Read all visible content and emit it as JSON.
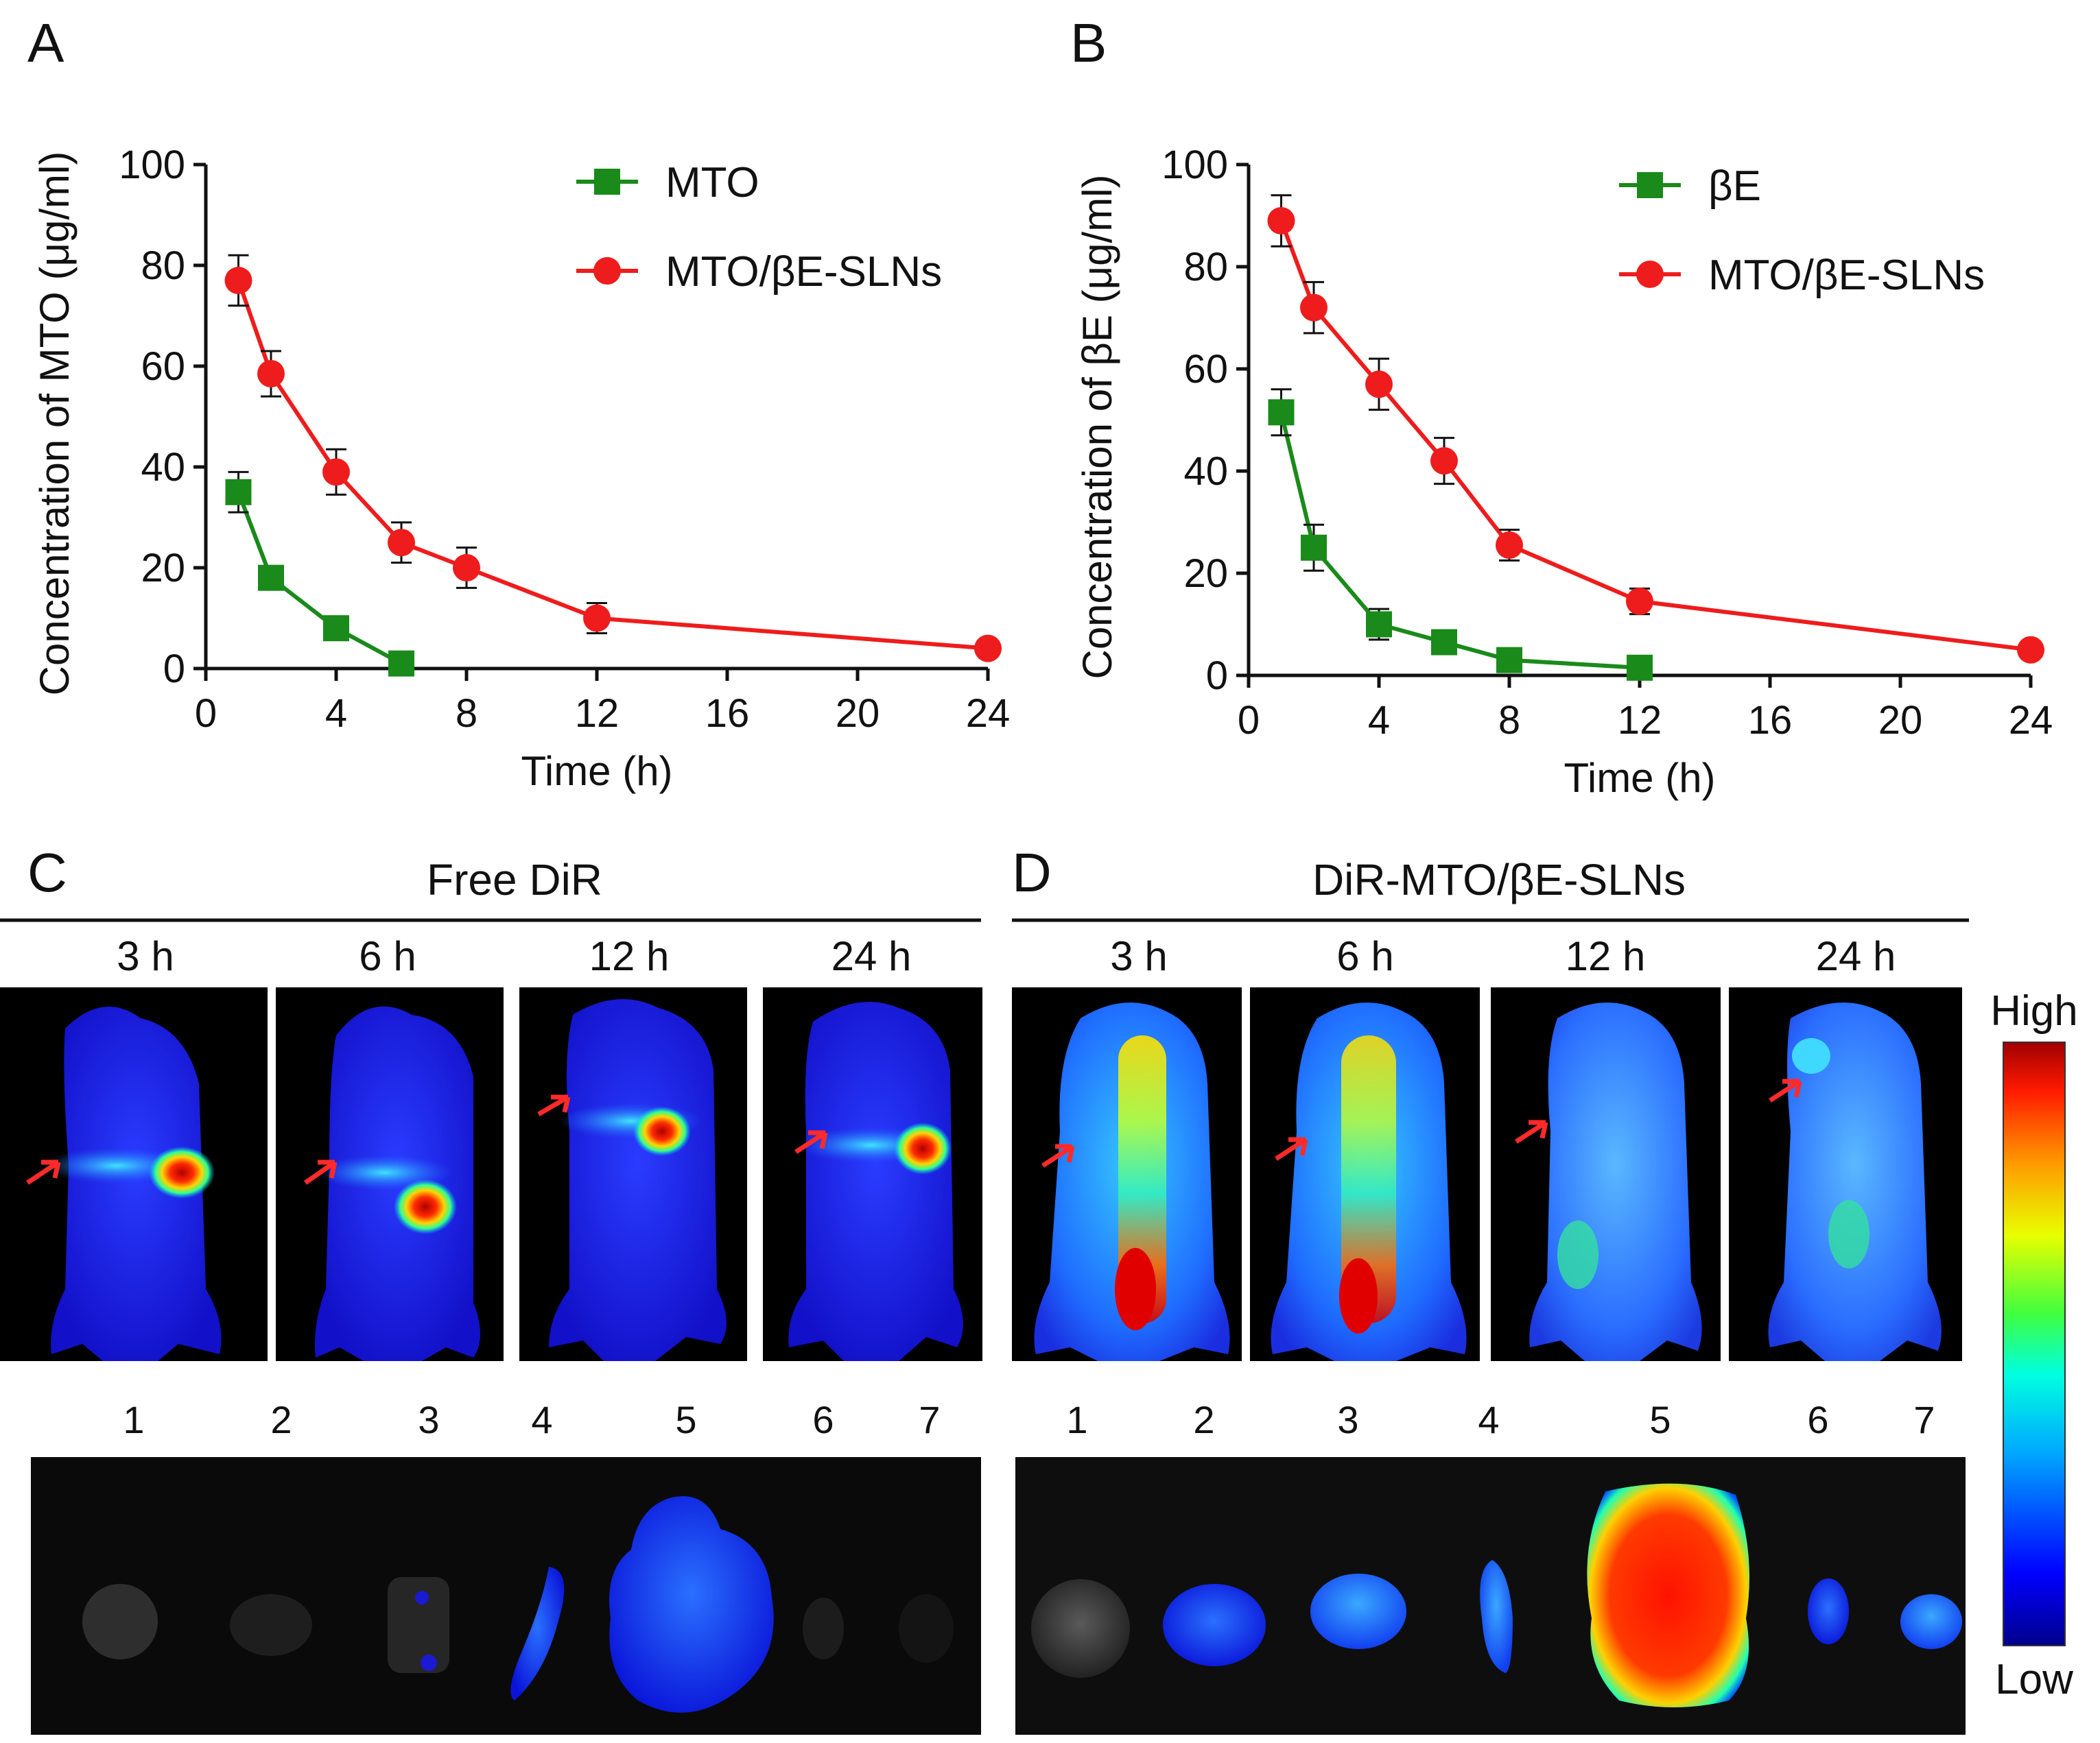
{
  "panels": {
    "A": {
      "label": "A"
    },
    "B": {
      "label": "B"
    },
    "C": {
      "label": "C",
      "title": "Free DiR"
    },
    "D": {
      "label": "D",
      "title": "DiR-MTO/βE-SLNs"
    }
  },
  "chart_data": [
    {
      "id": "A",
      "type": "line",
      "title": "",
      "xlabel": "Time (h)",
      "ylabel": "Concentration of MTO (μg/ml)",
      "xlim": [
        0,
        24
      ],
      "ylim": [
        0,
        100
      ],
      "xticks": [
        "0",
        "4",
        "8",
        "12",
        "16",
        "20",
        "24"
      ],
      "yticks": [
        "0",
        "20",
        "40",
        "60",
        "80",
        "100"
      ],
      "legend_position": "top-right",
      "series": [
        {
          "name": "MTO",
          "color": "#1a8a1a",
          "marker": "square",
          "x": [
            1,
            2,
            4,
            6
          ],
          "y": [
            35,
            18,
            8,
            1
          ],
          "err": [
            4,
            2,
            1.5,
            1
          ]
        },
        {
          "name": "MTO/βE-SLNs",
          "color": "#ee1c1c",
          "marker": "circle",
          "x": [
            1,
            2,
            4,
            6,
            8,
            12,
            24
          ],
          "y": [
            77,
            58.5,
            39,
            25,
            20,
            10,
            4
          ],
          "err": [
            5,
            4.5,
            4.5,
            4,
            4,
            3,
            1
          ]
        }
      ]
    },
    {
      "id": "B",
      "type": "line",
      "title": "",
      "xlabel": "Time (h)",
      "ylabel": "Concentration of  βE (μg/ml)",
      "xlim": [
        0,
        24
      ],
      "ylim": [
        0,
        100
      ],
      "xticks": [
        "0",
        "4",
        "8",
        "12",
        "16",
        "20",
        "24"
      ],
      "yticks": [
        "0",
        "20",
        "40",
        "60",
        "80",
        "100"
      ],
      "legend_position": "top-right",
      "series": [
        {
          "name": "βE",
          "color": "#1a8a1a",
          "marker": "square",
          "x": [
            1,
            2,
            4,
            6,
            8,
            12
          ],
          "y": [
            51.5,
            25,
            10,
            6.5,
            3,
            1.5
          ],
          "err": [
            4.5,
            4.5,
            3,
            2,
            1.5,
            1
          ]
        },
        {
          "name": "MTO/βE-SLNs",
          "color": "#ee1c1c",
          "marker": "circle",
          "x": [
            1,
            2,
            4,
            6,
            8,
            12,
            24
          ],
          "y": [
            89,
            72,
            57,
            42,
            25.5,
            14.5,
            5
          ],
          "err": [
            5,
            5,
            5,
            4.5,
            3,
            2.5,
            1
          ]
        }
      ]
    }
  ],
  "imaging": {
    "time_labels": [
      "3 h",
      "6 h",
      "12 h",
      "24 h"
    ],
    "organ_labels": [
      "1",
      "2",
      "3",
      "4",
      "5",
      "6",
      "7"
    ],
    "colorbar": {
      "high": "High",
      "low": "Low"
    }
  }
}
